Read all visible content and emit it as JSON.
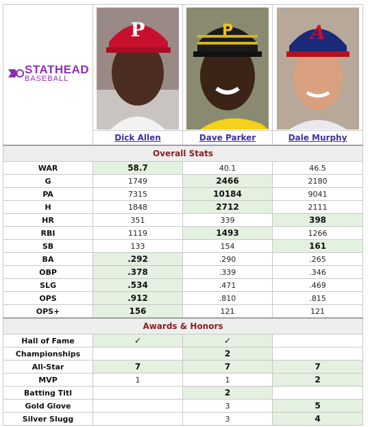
{
  "logo": {
    "brand": "STATHEAD",
    "sub": "BASEBALL"
  },
  "players": [
    {
      "name": "Dick Allen",
      "photo_icon": "player-photo-phillies-cap"
    },
    {
      "name": "Dave Parker",
      "photo_icon": "player-photo-pirates-cap"
    },
    {
      "name": "Dale Murphy",
      "photo_icon": "player-photo-braves-cap"
    }
  ],
  "sections": {
    "overall": "Overall Stats",
    "awards": "Awards & Honors"
  },
  "overall_stats": [
    {
      "label": "WAR",
      "values": [
        "58.7",
        "40.1",
        "46.5"
      ],
      "best": 0
    },
    {
      "label": "G",
      "values": [
        "1749",
        "2466",
        "2180"
      ],
      "best": 1
    },
    {
      "label": "PA",
      "values": [
        "7315",
        "10184",
        "9041"
      ],
      "best": 1
    },
    {
      "label": "H",
      "values": [
        "1848",
        "2712",
        "2111"
      ],
      "best": 1
    },
    {
      "label": "HR",
      "values": [
        "351",
        "339",
        "398"
      ],
      "best": 2
    },
    {
      "label": "RBI",
      "values": [
        "1119",
        "1493",
        "1266"
      ],
      "best": 1
    },
    {
      "label": "SB",
      "values": [
        "133",
        "154",
        "161"
      ],
      "best": 2
    },
    {
      "label": "BA",
      "values": [
        ".292",
        ".290",
        ".265"
      ],
      "best": 0
    },
    {
      "label": "OBP",
      "values": [
        ".378",
        ".339",
        ".346"
      ],
      "best": 0
    },
    {
      "label": "SLG",
      "values": [
        ".534",
        ".471",
        ".469"
      ],
      "best": 0
    },
    {
      "label": "OPS",
      "values": [
        ".912",
        ".810",
        ".815"
      ],
      "best": 0
    },
    {
      "label": "OPS+",
      "values": [
        "156",
        "121",
        "121"
      ],
      "best": 0
    }
  ],
  "awards": [
    {
      "label": "Hall of Fame",
      "values": [
        "✓",
        "✓",
        ""
      ],
      "hi": [
        true,
        true,
        false
      ]
    },
    {
      "label": "Championships",
      "values": [
        "",
        "2",
        ""
      ],
      "hi": [
        false,
        true,
        false
      ]
    },
    {
      "label": "All-Star",
      "values": [
        "7",
        "7",
        "7"
      ],
      "hi": [
        true,
        true,
        true
      ]
    },
    {
      "label": "MVP",
      "values": [
        "1",
        "1",
        "2"
      ],
      "hi": [
        false,
        false,
        true
      ]
    },
    {
      "label": "Batting Titl",
      "values": [
        "",
        "2",
        ""
      ],
      "hi": [
        false,
        true,
        false
      ]
    },
    {
      "label": "Gold Glove",
      "values": [
        "",
        "3",
        "5"
      ],
      "hi": [
        false,
        false,
        true
      ]
    },
    {
      "label": "Silver Slugg",
      "values": [
        "",
        "3",
        "4"
      ],
      "hi": [
        false,
        false,
        true
      ]
    }
  ],
  "colors": {
    "highlight": "#e4f0e0",
    "section_text": "#8b1c1c",
    "link": "#3f2fa3",
    "brand": "#8a2fb5"
  }
}
